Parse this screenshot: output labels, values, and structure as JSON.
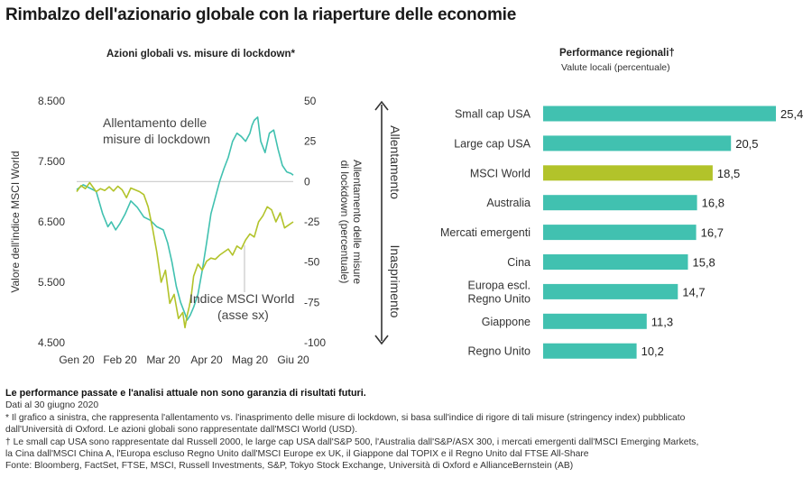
{
  "title": "Rimbalzo dell'azionario globale con la riaperture delle economie",
  "left_chart_title": "Azioni globali vs. misure di lockdown*",
  "right_chart_title": "Performance regionali†",
  "right_chart_subtitle": "Valute locali (percentuale)",
  "footer": {
    "disclaimer": "Le performance passate e l'analisi attuale non sono garanzia di risultati futuri.",
    "date": "Dati al 30 giugno 2020",
    "note1_line1": "* Il grafico a sinistra, che rappresenta l'allentamento vs. l'inasprimento delle misure di lockdown, si basa sull'indice di rigore di tali misure (stringency index) pubblicato",
    "note1_line2": "dall'Università di Oxford. Le azioni globali sono rappresentate dall'MSCI World (USD).",
    "note2_line1": "† Le small cap USA sono rappresentate dal Russell 2000, le large cap USA dall'S&P 500, l'Australia dall'S&P/ASX 300, i mercati emergenti dall'MSCI Emerging Markets,",
    "note2_line2": "la Cina dall'MSCI China A, l'Europa escluso Regno Unito dall'MSCI Europe ex UK, il Giappone dal TOPIX e il Regno Unito dal FTSE All-Share",
    "source": "Fonte: Bloomberg, FactSet, FTSE, MSCI, Russell Investments, S&P, Tokyo Stock Exchange, Università di Oxford e AllianceBernstein (AB)"
  },
  "colors": {
    "teal": "#41c1b0",
    "olive": "#b2c32a",
    "gray_line": "#c9c9c9",
    "text": "#333333"
  },
  "chart_data": [
    {
      "type": "line",
      "title": "Azioni globali vs. misure di lockdown*",
      "x_ticks": [
        "Gen 20",
        "Feb 20",
        "Mar 20",
        "Apr 20",
        "Mag 20",
        "Giu 20"
      ],
      "left_axis": {
        "label": "Valore dell'indice MSCI World",
        "range": [
          4500,
          8500
        ],
        "ticks": [
          8500,
          7500,
          6500,
          5500,
          4500
        ],
        "tick_labels": [
          "8.500",
          "7.500",
          "6.500",
          "5.500",
          "4.500"
        ]
      },
      "right_axis": {
        "label_line1": "Allentamento delle misure",
        "label_line2": "di lockdown (percentuale)",
        "range": [
          -100,
          50
        ],
        "ticks": [
          50,
          25,
          0,
          -25,
          -50,
          -75,
          -100
        ],
        "tick_labels": [
          "50",
          "25",
          "0",
          "-25",
          "-50",
          "-75",
          "-100"
        ]
      },
      "arrow_labels": {
        "up": "Allentamento",
        "down": "Inasprimento"
      },
      "annotations": {
        "lockdown_line1": "Allentamento delle",
        "lockdown_line2": "misure di lockdown",
        "msci_line1": "Indice MSCI World",
        "msci_line2": "(asse sx)"
      },
      "series": [
        {
          "name": "Allentamento delle misure di lockdown",
          "axis": "right",
          "color": "#41c1b0",
          "x": [
            0,
            0.15,
            0.3,
            0.45,
            0.6,
            0.72,
            0.8,
            0.9,
            1.0,
            1.12,
            1.25,
            1.4,
            1.55,
            1.7,
            1.85,
            2.0,
            2.1,
            2.2,
            2.3,
            2.4,
            2.5,
            2.55,
            2.62,
            2.7,
            2.8,
            2.9,
            3.0,
            3.1,
            3.2,
            3.3,
            3.4,
            3.5,
            3.6,
            3.7,
            3.8,
            3.9,
            4.0,
            4.05,
            4.1,
            4.18,
            4.25,
            4.35,
            4.45,
            4.55,
            4.65,
            4.75,
            4.85,
            4.95,
            5.0
          ],
          "y": [
            -5,
            -2,
            -4,
            -6,
            -20,
            -28,
            -25,
            -30,
            -26,
            -20,
            -12,
            -16,
            -22,
            -24,
            -28,
            -30,
            -38,
            -50,
            -65,
            -75,
            -82,
            -86,
            -83,
            -78,
            -70,
            -55,
            -38,
            -20,
            -10,
            0,
            8,
            15,
            25,
            30,
            28,
            25,
            30,
            35,
            38,
            40,
            25,
            18,
            30,
            32,
            20,
            10,
            6,
            5,
            4
          ]
        },
        {
          "name": "Indice MSCI World (asse sx)",
          "axis": "left",
          "color": "#b2c32a",
          "x": [
            0,
            0.1,
            0.2,
            0.3,
            0.45,
            0.55,
            0.65,
            0.75,
            0.85,
            0.95,
            1.05,
            1.15,
            1.25,
            1.35,
            1.45,
            1.55,
            1.65,
            1.75,
            1.85,
            1.95,
            2.05,
            2.15,
            2.25,
            2.35,
            2.45,
            2.5,
            2.55,
            2.6,
            2.65,
            2.7,
            2.8,
            2.9,
            3.0,
            3.1,
            3.2,
            3.3,
            3.4,
            3.5,
            3.6,
            3.7,
            3.8,
            3.9,
            4.0,
            4.1,
            4.2,
            4.3,
            4.4,
            4.5,
            4.6,
            4.7,
            4.8,
            4.9,
            5.0
          ],
          "y": [
            7000,
            7100,
            7050,
            7150,
            7000,
            7050,
            7020,
            7080,
            7010,
            7090,
            7030,
            6900,
            7060,
            7030,
            7000,
            6950,
            6750,
            6400,
            6000,
            5500,
            5700,
            5150,
            5300,
            4900,
            5000,
            4750,
            4950,
            5100,
            5300,
            5600,
            5800,
            5700,
            5850,
            5900,
            5880,
            5950,
            6000,
            6050,
            5950,
            6100,
            6050,
            6200,
            6300,
            6250,
            6500,
            6600,
            6750,
            6700,
            6500,
            6650,
            6400,
            6450,
            6500
          ]
        }
      ]
    },
    {
      "type": "bar",
      "orientation": "horizontal",
      "title": "Performance regionali†",
      "subtitle": "Valute locali (percentuale)",
      "categories": [
        {
          "line1": "Small cap USA",
          "line2": ""
        },
        {
          "line1": "Large cap USA",
          "line2": ""
        },
        {
          "line1": "MSCI World",
          "line2": ""
        },
        {
          "line1": "Australia",
          "line2": ""
        },
        {
          "line1": "Mercati emergenti",
          "line2": ""
        },
        {
          "line1": "Cina",
          "line2": ""
        },
        {
          "line1": "Europa escl.",
          "line2": "Regno Unito"
        },
        {
          "line1": "Giappone",
          "line2": ""
        },
        {
          "line1": "Regno Unito",
          "line2": ""
        }
      ],
      "values": [
        25.4,
        20.5,
        18.5,
        16.8,
        16.7,
        15.8,
        14.7,
        11.3,
        10.2
      ],
      "value_labels": [
        "25,4",
        "20,5",
        "18,5",
        "16,8",
        "16,7",
        "15,8",
        "14,7",
        "11,3",
        "10,2"
      ],
      "highlight_index": 2
    }
  ]
}
